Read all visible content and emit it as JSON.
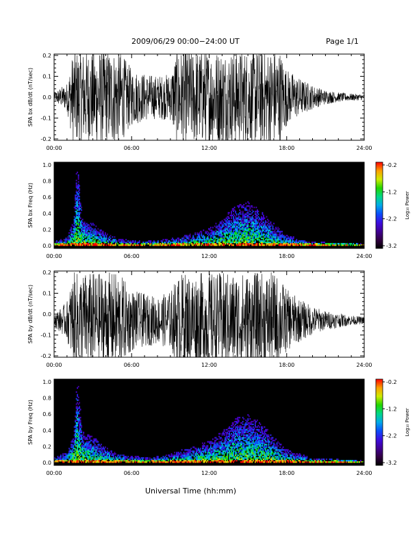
{
  "header": {
    "title": "2009/06/29  00:00−24:00 UT",
    "page": "Page 1/1"
  },
  "chart_data": [
    {
      "type": "line",
      "ylabel": "SPA bx dB/dt (nT/sec)",
      "x_ticks": [
        "00:00",
        "06:00",
        "12:00",
        "18:00",
        "24:00"
      ],
      "y_ticks": [
        "-0.2",
        "-0.1",
        "0.0",
        "0.1",
        "0.2"
      ],
      "xlim": [
        0,
        24
      ],
      "ylim": [
        -0.2,
        0.2
      ],
      "x_unit": "hours UT",
      "envelope_x": [
        0,
        0.5,
        1.0,
        1.5,
        2.0,
        3.0,
        4.0,
        5.0,
        6.0,
        7.0,
        8.0,
        9.0,
        9.5,
        10.0,
        11.0,
        12.0,
        13.0,
        14.0,
        15.0,
        16.0,
        17.0,
        17.5,
        18.0,
        19.0,
        20.0,
        21.0,
        22.0,
        23.0,
        24.0
      ],
      "envelope_amp": [
        0.02,
        0.04,
        0.06,
        0.2,
        0.2,
        0.2,
        0.2,
        0.2,
        0.12,
        0.1,
        0.09,
        0.1,
        0.2,
        0.2,
        0.2,
        0.2,
        0.2,
        0.2,
        0.2,
        0.2,
        0.2,
        0.2,
        0.12,
        0.08,
        0.05,
        0.03,
        0.02,
        0.015,
        0.012
      ],
      "baseline": 0.0
    },
    {
      "type": "heatmap",
      "ylabel": "SPA bx Freq (Hz)",
      "x_ticks": [
        "00:00",
        "06:00",
        "12:00",
        "18:00",
        "24:00"
      ],
      "y_ticks": [
        "0.0",
        "0.2",
        "0.4",
        "0.6",
        "0.8",
        "1.0"
      ],
      "xlim": [
        0,
        24
      ],
      "ylim": [
        0,
        1.0
      ],
      "colorbar": {
        "label": "Log₁₀ Power",
        "ticks": [
          "-0.2",
          "-1.2",
          "-2.2",
          "-3.2"
        ],
        "range": [
          -3.2,
          -0.2
        ]
      },
      "activity_x": [
        0,
        1,
        1.5,
        1.8,
        2.2,
        3,
        4,
        5,
        6,
        7,
        8,
        9,
        10,
        11,
        12,
        13,
        14,
        15,
        16,
        17,
        18,
        19,
        20,
        21,
        22,
        23,
        24
      ],
      "activity_height_hz": [
        0.05,
        0.1,
        0.3,
        1.0,
        0.3,
        0.25,
        0.15,
        0.08,
        0.06,
        0.05,
        0.06,
        0.08,
        0.12,
        0.15,
        0.2,
        0.3,
        0.45,
        0.5,
        0.4,
        0.25,
        0.12,
        0.08,
        0.05,
        0.04,
        0.03,
        0.03,
        0.02
      ]
    },
    {
      "type": "line",
      "ylabel": "SPA by dB/dt (nT/sec)",
      "x_ticks": [
        "00:00",
        "06:00",
        "12:00",
        "18:00",
        "24:00"
      ],
      "y_ticks": [
        "-0.2",
        "-0.1",
        "0.0",
        "0.1",
        "0.2"
      ],
      "xlim": [
        0,
        24
      ],
      "ylim": [
        -0.2,
        0.2
      ],
      "x_unit": "hours UT",
      "envelope_x": [
        0,
        0.5,
        1.0,
        1.5,
        2.0,
        3.0,
        4.0,
        5.0,
        6.0,
        7.0,
        8.0,
        9.0,
        9.5,
        10.0,
        11.0,
        12.0,
        13.0,
        14.0,
        15.0,
        16.0,
        17.0,
        17.5,
        18.0,
        19.0,
        20.0,
        21.0,
        22.0,
        23.0,
        24.0
      ],
      "envelope_amp": [
        0.03,
        0.05,
        0.08,
        0.2,
        0.2,
        0.2,
        0.2,
        0.2,
        0.13,
        0.11,
        0.1,
        0.12,
        0.18,
        0.2,
        0.2,
        0.2,
        0.2,
        0.2,
        0.2,
        0.2,
        0.2,
        0.18,
        0.13,
        0.09,
        0.06,
        0.04,
        0.03,
        0.02,
        0.015
      ],
      "baseline": -0.03
    },
    {
      "type": "heatmap",
      "ylabel": "SPA by Freq (Hz)",
      "x_ticks": [
        "00:00",
        "06:00",
        "12:00",
        "18:00",
        "24:00"
      ],
      "y_ticks": [
        "0.0",
        "0.2",
        "0.4",
        "0.6",
        "0.8",
        "1.0"
      ],
      "xlim": [
        0,
        24
      ],
      "ylim": [
        0,
        1.0
      ],
      "colorbar": {
        "label": "Log₁₀ Power",
        "ticks": [
          "-0.2",
          "-1.2",
          "-2.2",
          "-3.2"
        ],
        "range": [
          -3.2,
          -0.2
        ]
      },
      "activity_x": [
        0,
        1,
        1.5,
        1.8,
        2.2,
        3,
        4,
        5,
        6,
        7,
        8,
        9,
        10,
        11,
        12,
        13,
        14,
        15,
        16,
        17,
        18,
        19,
        20,
        21,
        22,
        23,
        24
      ],
      "activity_height_hz": [
        0.06,
        0.12,
        0.3,
        1.0,
        0.35,
        0.3,
        0.18,
        0.1,
        0.08,
        0.06,
        0.07,
        0.1,
        0.15,
        0.2,
        0.25,
        0.35,
        0.5,
        0.55,
        0.45,
        0.3,
        0.15,
        0.1,
        0.06,
        0.05,
        0.04,
        0.03,
        0.02
      ]
    }
  ],
  "xaxis_label": "Universal Time (hh:mm)"
}
